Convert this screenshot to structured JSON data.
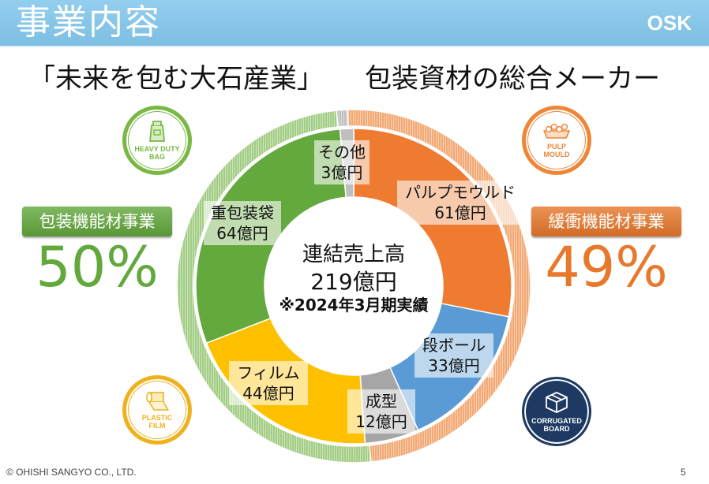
{
  "header": {
    "title": "事業内容",
    "logo": "OSK",
    "bg_color": "#82c6ec"
  },
  "subtitle": {
    "left": "「未来を包む大石産業」",
    "right": "包装資材の総合メーカー"
  },
  "icons": {
    "heavy_duty_bag": {
      "icon": "bag-icon",
      "line1": "HEAVY DUTY",
      "line2": "BAG",
      "color": "#79b843"
    },
    "pulp_mould": {
      "icon": "egg-tray-icon",
      "line1": "PULP",
      "line2": "MOULD",
      "color": "#ee8537"
    },
    "plastic_film": {
      "icon": "film-roll-icon",
      "line1": "PLASTIC",
      "line2": "FILM",
      "color": "#efb21e"
    },
    "corrugated_board": {
      "icon": "cardboard-box-icon",
      "line1": "CORRUGATED",
      "line2": "BOARD",
      "color": "#1e3a62"
    }
  },
  "chart_data": {
    "type": "pie",
    "donut": true,
    "center_text": {
      "line1": "連結売上高",
      "line2": "219億円",
      "line3": "※2024年3月期実績"
    },
    "inner_ring": [
      {
        "label": "パルプモウルド",
        "value": 61,
        "value_label": "61億円",
        "color": "#ee7b30"
      },
      {
        "label": "段ボール",
        "value": 33,
        "value_label": "33億円",
        "color": "#5b9bd5"
      },
      {
        "label": "成型",
        "value": 12,
        "value_label": "12億円",
        "color": "#a6a6a6"
      },
      {
        "label": "フィルム",
        "value": 44,
        "value_label": "44億円",
        "color": "#ffc000"
      },
      {
        "label": "重包装袋",
        "value": 64,
        "value_label": "64億円",
        "color": "#64a93e"
      },
      {
        "label": "その他",
        "value": 3,
        "value_label": "3億円",
        "color": "#bfbfbf"
      }
    ],
    "outer_ring": [
      {
        "label": "緩衝機能材事業",
        "value": 49,
        "value_label": "49%",
        "color": "#f3a974",
        "accent_color": "#e8782b"
      },
      {
        "label": "包装機能材事業",
        "value": 50,
        "value_label": "50%",
        "color": "#a3cd85",
        "accent_color": "#62a83b"
      },
      {
        "value": 1,
        "color": "#bfbfbf"
      }
    ]
  },
  "footer": {
    "copyright": "© OHISHI SANGYO CO., LTD.",
    "page_number": "5"
  }
}
